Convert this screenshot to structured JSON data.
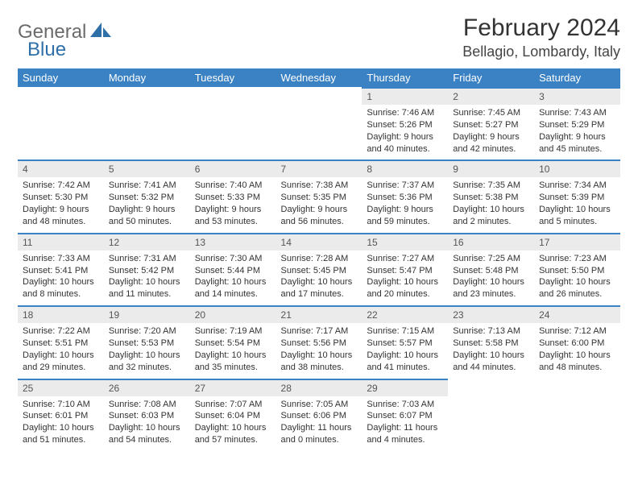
{
  "logo": {
    "word1": "General",
    "word2": "Blue"
  },
  "header": {
    "month_title": "February 2024",
    "location": "Bellagio, Lombardy, Italy"
  },
  "colors": {
    "header_bg": "#3b82c4",
    "daynum_bg": "#ebebeb",
    "border": "#3b82c4"
  },
  "weekdays": [
    "Sunday",
    "Monday",
    "Tuesday",
    "Wednesday",
    "Thursday",
    "Friday",
    "Saturday"
  ],
  "weeks": [
    [
      null,
      null,
      null,
      null,
      {
        "day": "1",
        "sunrise": "Sunrise: 7:46 AM",
        "sunset": "Sunset: 5:26 PM",
        "daylight": "Daylight: 9 hours and 40 minutes."
      },
      {
        "day": "2",
        "sunrise": "Sunrise: 7:45 AM",
        "sunset": "Sunset: 5:27 PM",
        "daylight": "Daylight: 9 hours and 42 minutes."
      },
      {
        "day": "3",
        "sunrise": "Sunrise: 7:43 AM",
        "sunset": "Sunset: 5:29 PM",
        "daylight": "Daylight: 9 hours and 45 minutes."
      }
    ],
    [
      {
        "day": "4",
        "sunrise": "Sunrise: 7:42 AM",
        "sunset": "Sunset: 5:30 PM",
        "daylight": "Daylight: 9 hours and 48 minutes."
      },
      {
        "day": "5",
        "sunrise": "Sunrise: 7:41 AM",
        "sunset": "Sunset: 5:32 PM",
        "daylight": "Daylight: 9 hours and 50 minutes."
      },
      {
        "day": "6",
        "sunrise": "Sunrise: 7:40 AM",
        "sunset": "Sunset: 5:33 PM",
        "daylight": "Daylight: 9 hours and 53 minutes."
      },
      {
        "day": "7",
        "sunrise": "Sunrise: 7:38 AM",
        "sunset": "Sunset: 5:35 PM",
        "daylight": "Daylight: 9 hours and 56 minutes."
      },
      {
        "day": "8",
        "sunrise": "Sunrise: 7:37 AM",
        "sunset": "Sunset: 5:36 PM",
        "daylight": "Daylight: 9 hours and 59 minutes."
      },
      {
        "day": "9",
        "sunrise": "Sunrise: 7:35 AM",
        "sunset": "Sunset: 5:38 PM",
        "daylight": "Daylight: 10 hours and 2 minutes."
      },
      {
        "day": "10",
        "sunrise": "Sunrise: 7:34 AM",
        "sunset": "Sunset: 5:39 PM",
        "daylight": "Daylight: 10 hours and 5 minutes."
      }
    ],
    [
      {
        "day": "11",
        "sunrise": "Sunrise: 7:33 AM",
        "sunset": "Sunset: 5:41 PM",
        "daylight": "Daylight: 10 hours and 8 minutes."
      },
      {
        "day": "12",
        "sunrise": "Sunrise: 7:31 AM",
        "sunset": "Sunset: 5:42 PM",
        "daylight": "Daylight: 10 hours and 11 minutes."
      },
      {
        "day": "13",
        "sunrise": "Sunrise: 7:30 AM",
        "sunset": "Sunset: 5:44 PM",
        "daylight": "Daylight: 10 hours and 14 minutes."
      },
      {
        "day": "14",
        "sunrise": "Sunrise: 7:28 AM",
        "sunset": "Sunset: 5:45 PM",
        "daylight": "Daylight: 10 hours and 17 minutes."
      },
      {
        "day": "15",
        "sunrise": "Sunrise: 7:27 AM",
        "sunset": "Sunset: 5:47 PM",
        "daylight": "Daylight: 10 hours and 20 minutes."
      },
      {
        "day": "16",
        "sunrise": "Sunrise: 7:25 AM",
        "sunset": "Sunset: 5:48 PM",
        "daylight": "Daylight: 10 hours and 23 minutes."
      },
      {
        "day": "17",
        "sunrise": "Sunrise: 7:23 AM",
        "sunset": "Sunset: 5:50 PM",
        "daylight": "Daylight: 10 hours and 26 minutes."
      }
    ],
    [
      {
        "day": "18",
        "sunrise": "Sunrise: 7:22 AM",
        "sunset": "Sunset: 5:51 PM",
        "daylight": "Daylight: 10 hours and 29 minutes."
      },
      {
        "day": "19",
        "sunrise": "Sunrise: 7:20 AM",
        "sunset": "Sunset: 5:53 PM",
        "daylight": "Daylight: 10 hours and 32 minutes."
      },
      {
        "day": "20",
        "sunrise": "Sunrise: 7:19 AM",
        "sunset": "Sunset: 5:54 PM",
        "daylight": "Daylight: 10 hours and 35 minutes."
      },
      {
        "day": "21",
        "sunrise": "Sunrise: 7:17 AM",
        "sunset": "Sunset: 5:56 PM",
        "daylight": "Daylight: 10 hours and 38 minutes."
      },
      {
        "day": "22",
        "sunrise": "Sunrise: 7:15 AM",
        "sunset": "Sunset: 5:57 PM",
        "daylight": "Daylight: 10 hours and 41 minutes."
      },
      {
        "day": "23",
        "sunrise": "Sunrise: 7:13 AM",
        "sunset": "Sunset: 5:58 PM",
        "daylight": "Daylight: 10 hours and 44 minutes."
      },
      {
        "day": "24",
        "sunrise": "Sunrise: 7:12 AM",
        "sunset": "Sunset: 6:00 PM",
        "daylight": "Daylight: 10 hours and 48 minutes."
      }
    ],
    [
      {
        "day": "25",
        "sunrise": "Sunrise: 7:10 AM",
        "sunset": "Sunset: 6:01 PM",
        "daylight": "Daylight: 10 hours and 51 minutes."
      },
      {
        "day": "26",
        "sunrise": "Sunrise: 7:08 AM",
        "sunset": "Sunset: 6:03 PM",
        "daylight": "Daylight: 10 hours and 54 minutes."
      },
      {
        "day": "27",
        "sunrise": "Sunrise: 7:07 AM",
        "sunset": "Sunset: 6:04 PM",
        "daylight": "Daylight: 10 hours and 57 minutes."
      },
      {
        "day": "28",
        "sunrise": "Sunrise: 7:05 AM",
        "sunset": "Sunset: 6:06 PM",
        "daylight": "Daylight: 11 hours and 0 minutes."
      },
      {
        "day": "29",
        "sunrise": "Sunrise: 7:03 AM",
        "sunset": "Sunset: 6:07 PM",
        "daylight": "Daylight: 11 hours and 4 minutes."
      },
      null,
      null
    ]
  ]
}
